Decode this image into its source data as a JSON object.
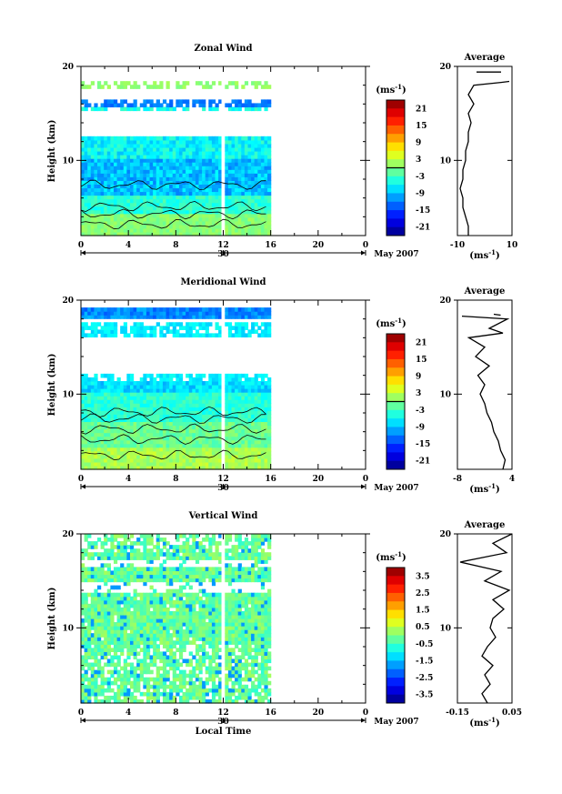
{
  "chart_data": [
    {
      "type": "heatmap",
      "title": "Zonal Wind",
      "ylabel": "Height (km)",
      "x_ticks": [
        "0",
        "4",
        "8",
        "12",
        "16",
        "20",
        "0"
      ],
      "xlim": [
        0,
        24
      ],
      "ylim": [
        2,
        20
      ],
      "y_ticks": [
        "10",
        "20"
      ],
      "date_day": "30",
      "date_label": "May 2007",
      "data_range": [
        0,
        16
      ],
      "colorbar": {
        "unit": "(ms",
        "unit_sup": "-1",
        "unit_close": ")",
        "ticks": [
          "21",
          "15",
          "9",
          "3",
          "-3",
          "-9",
          "-15",
          "-21"
        ],
        "range": [
          -24,
          24
        ],
        "zero_line": 0
      },
      "average": {
        "title": "Average",
        "xlabel": "(ms",
        "xlabel_sup": "-1",
        "xlabel_close": ")",
        "x_ticks": [
          "-10",
          "10"
        ],
        "xlim": [
          -10,
          10
        ],
        "y_ticks": [
          "10",
          "20"
        ],
        "profile": [
          [
            -6,
            2
          ],
          [
            -6,
            3
          ],
          [
            -7,
            4
          ],
          [
            -8,
            5
          ],
          [
            -8,
            6
          ],
          [
            -9,
            7
          ],
          [
            -8,
            8
          ],
          [
            -8,
            9
          ],
          [
            -7,
            10
          ],
          [
            -7,
            11
          ],
          [
            -6,
            12
          ],
          [
            -6,
            13
          ],
          [
            -5,
            14
          ],
          [
            -6,
            15
          ],
          [
            -4,
            16
          ],
          [
            -6,
            17
          ],
          [
            -4,
            18
          ],
          [
            6,
            18.3
          ],
          [
            9,
            18.4
          ]
        ],
        "profile_extra": [
          [
            -3,
            19.4
          ],
          [
            6,
            19.4
          ]
        ]
      },
      "pattern": "zonal"
    },
    {
      "type": "heatmap",
      "title": "Meridional Wind",
      "ylabel": "Height (km)",
      "x_ticks": [
        "0",
        "4",
        "8",
        "12",
        "16",
        "20",
        "0"
      ],
      "xlim": [
        0,
        24
      ],
      "ylim": [
        2,
        20
      ],
      "y_ticks": [
        "10",
        "20"
      ],
      "date_day": "30",
      "date_label": "May 2007",
      "data_range": [
        0,
        16
      ],
      "colorbar": {
        "unit": "(ms",
        "unit_sup": "-1",
        "unit_close": ")",
        "ticks": [
          "21",
          "15",
          "9",
          "3",
          "-3",
          "-9",
          "-15",
          "-21"
        ],
        "range": [
          -24,
          24
        ],
        "zero_line": 0
      },
      "average": {
        "title": "Average",
        "xlabel": "(ms",
        "xlabel_sup": "-1",
        "xlabel_close": ")",
        "x_ticks": [
          "-8",
          "4"
        ],
        "xlim": [
          -8,
          4
        ],
        "y_ticks": [
          "10",
          "20"
        ],
        "profile": [
          [
            2,
            2
          ],
          [
            2.5,
            3
          ],
          [
            1.5,
            4
          ],
          [
            1,
            5
          ],
          [
            0,
            6
          ],
          [
            -0.5,
            7
          ],
          [
            -1.5,
            8
          ],
          [
            -2,
            9
          ],
          [
            -3,
            10
          ],
          [
            -2,
            11
          ],
          [
            -3.5,
            12
          ],
          [
            -1,
            13
          ],
          [
            -4,
            14
          ],
          [
            -2,
            15
          ],
          [
            -5.5,
            16
          ],
          [
            2,
            16.5
          ],
          [
            -1,
            17
          ],
          [
            3,
            18
          ],
          [
            -7,
            18.3
          ]
        ],
        "profile_extra": [
          [
            0,
            18.5
          ],
          [
            1.5,
            18.4
          ]
        ]
      },
      "pattern": "meridional"
    },
    {
      "type": "heatmap",
      "title": "Vertical Wind",
      "ylabel": "Height (km)",
      "xlabel": "Local Time",
      "x_ticks": [
        "0",
        "4",
        "8",
        "12",
        "16",
        "20",
        "0"
      ],
      "xlim": [
        0,
        24
      ],
      "ylim": [
        2,
        20
      ],
      "y_ticks": [
        "10",
        "20"
      ],
      "date_day": "30",
      "date_label": "May 2007",
      "data_range": [
        0,
        16
      ],
      "colorbar": {
        "unit": "(ms",
        "unit_sup": "-1",
        "unit_close": ")",
        "ticks": [
          "3.5",
          "2.5",
          "1.5",
          "0.5",
          "-0.5",
          "-1.5",
          "-2.5",
          "-3.5"
        ],
        "range": [
          -4,
          4
        ],
        "zero_line": null
      },
      "average": {
        "title": "Average",
        "xlabel": "(ms",
        "xlabel_sup": "-1",
        "xlabel_close": ")",
        "x_ticks": [
          "-0.15",
          "0.05"
        ],
        "xlim": [
          -0.15,
          0.05
        ],
        "y_ticks": [
          "10",
          "20"
        ],
        "profile": [
          [
            -0.04,
            2
          ],
          [
            -0.06,
            3
          ],
          [
            -0.03,
            4
          ],
          [
            -0.05,
            5
          ],
          [
            -0.02,
            6
          ],
          [
            -0.06,
            7
          ],
          [
            -0.04,
            8
          ],
          [
            -0.01,
            9
          ],
          [
            -0.03,
            10
          ],
          [
            -0.02,
            11
          ],
          [
            0.02,
            12
          ],
          [
            -0.02,
            13
          ],
          [
            0.04,
            14
          ],
          [
            -0.05,
            15
          ],
          [
            0.01,
            16
          ],
          [
            -0.14,
            17
          ],
          [
            0.03,
            18
          ],
          [
            -0.02,
            19
          ],
          [
            0.05,
            20
          ]
        ]
      },
      "pattern": "vertical"
    }
  ]
}
